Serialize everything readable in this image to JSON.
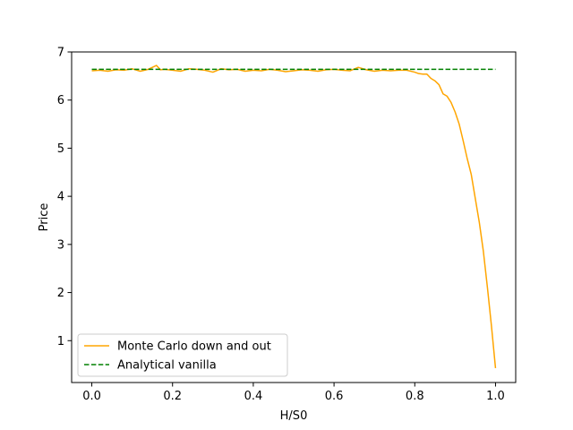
{
  "chart_data": {
    "type": "line",
    "title": "",
    "xlabel": "H/S0",
    "ylabel": "Price",
    "xlim": [
      -0.05,
      1.05
    ],
    "ylim": [
      0.13,
      7.0
    ],
    "xticks": [
      0.0,
      0.2,
      0.4,
      0.6,
      0.8,
      1.0
    ],
    "xtick_labels": [
      "0.0",
      "0.2",
      "0.4",
      "0.6",
      "0.8",
      "1.0"
    ],
    "yticks": [
      1,
      2,
      3,
      4,
      5,
      6,
      7
    ],
    "ytick_labels": [
      "1",
      "2",
      "3",
      "4",
      "5",
      "6",
      "7"
    ],
    "grid": false,
    "legend_position": "lower-left",
    "series": [
      {
        "name": "Monte Carlo down and out",
        "color": "#ffa500",
        "style": "solid",
        "x": [
          0.0,
          0.02,
          0.04,
          0.06,
          0.08,
          0.1,
          0.12,
          0.14,
          0.16,
          0.17,
          0.18,
          0.2,
          0.22,
          0.24,
          0.26,
          0.28,
          0.3,
          0.32,
          0.34,
          0.36,
          0.38,
          0.4,
          0.42,
          0.44,
          0.46,
          0.48,
          0.5,
          0.52,
          0.54,
          0.56,
          0.58,
          0.6,
          0.62,
          0.64,
          0.66,
          0.68,
          0.7,
          0.72,
          0.74,
          0.76,
          0.78,
          0.8,
          0.81,
          0.82,
          0.83,
          0.84,
          0.85,
          0.86,
          0.87,
          0.88,
          0.89,
          0.9,
          0.91,
          0.92,
          0.93,
          0.94,
          0.95,
          0.96,
          0.97,
          0.98,
          0.99,
          1.0
        ],
        "y": [
          6.61,
          6.62,
          6.6,
          6.63,
          6.62,
          6.65,
          6.6,
          6.64,
          6.72,
          6.63,
          6.64,
          6.62,
          6.6,
          6.65,
          6.64,
          6.62,
          6.58,
          6.65,
          6.63,
          6.64,
          6.6,
          6.62,
          6.61,
          6.64,
          6.62,
          6.59,
          6.61,
          6.63,
          6.62,
          6.6,
          6.63,
          6.64,
          6.62,
          6.61,
          6.68,
          6.63,
          6.6,
          6.62,
          6.61,
          6.62,
          6.62,
          6.58,
          6.55,
          6.54,
          6.54,
          6.45,
          6.4,
          6.32,
          6.13,
          6.08,
          5.95,
          5.75,
          5.5,
          5.15,
          4.78,
          4.45,
          3.95,
          3.45,
          2.85,
          2.1,
          1.3,
          0.43
        ]
      },
      {
        "name": "Analytical vanilla",
        "color": "#008000",
        "style": "dashed",
        "x": [
          0.0,
          1.0
        ],
        "y": [
          6.64,
          6.64
        ]
      }
    ]
  }
}
